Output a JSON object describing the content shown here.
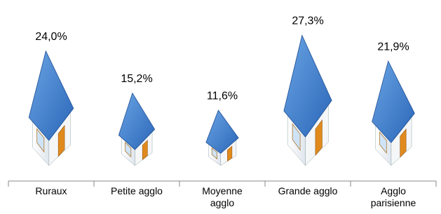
{
  "chart_data": {
    "type": "pictogram",
    "categories": [
      "Ruraux",
      "Petite agglo",
      "Moyenne\nagglo",
      "Grande agglo",
      "Agglo\nparisienne"
    ],
    "values": [
      24.0,
      15.2,
      11.6,
      27.3,
      21.9
    ],
    "value_labels": [
      "24,0%",
      "15,2%",
      "11,6%",
      "27,3%",
      "21,9%"
    ],
    "color": "#3b7ad0"
  }
}
